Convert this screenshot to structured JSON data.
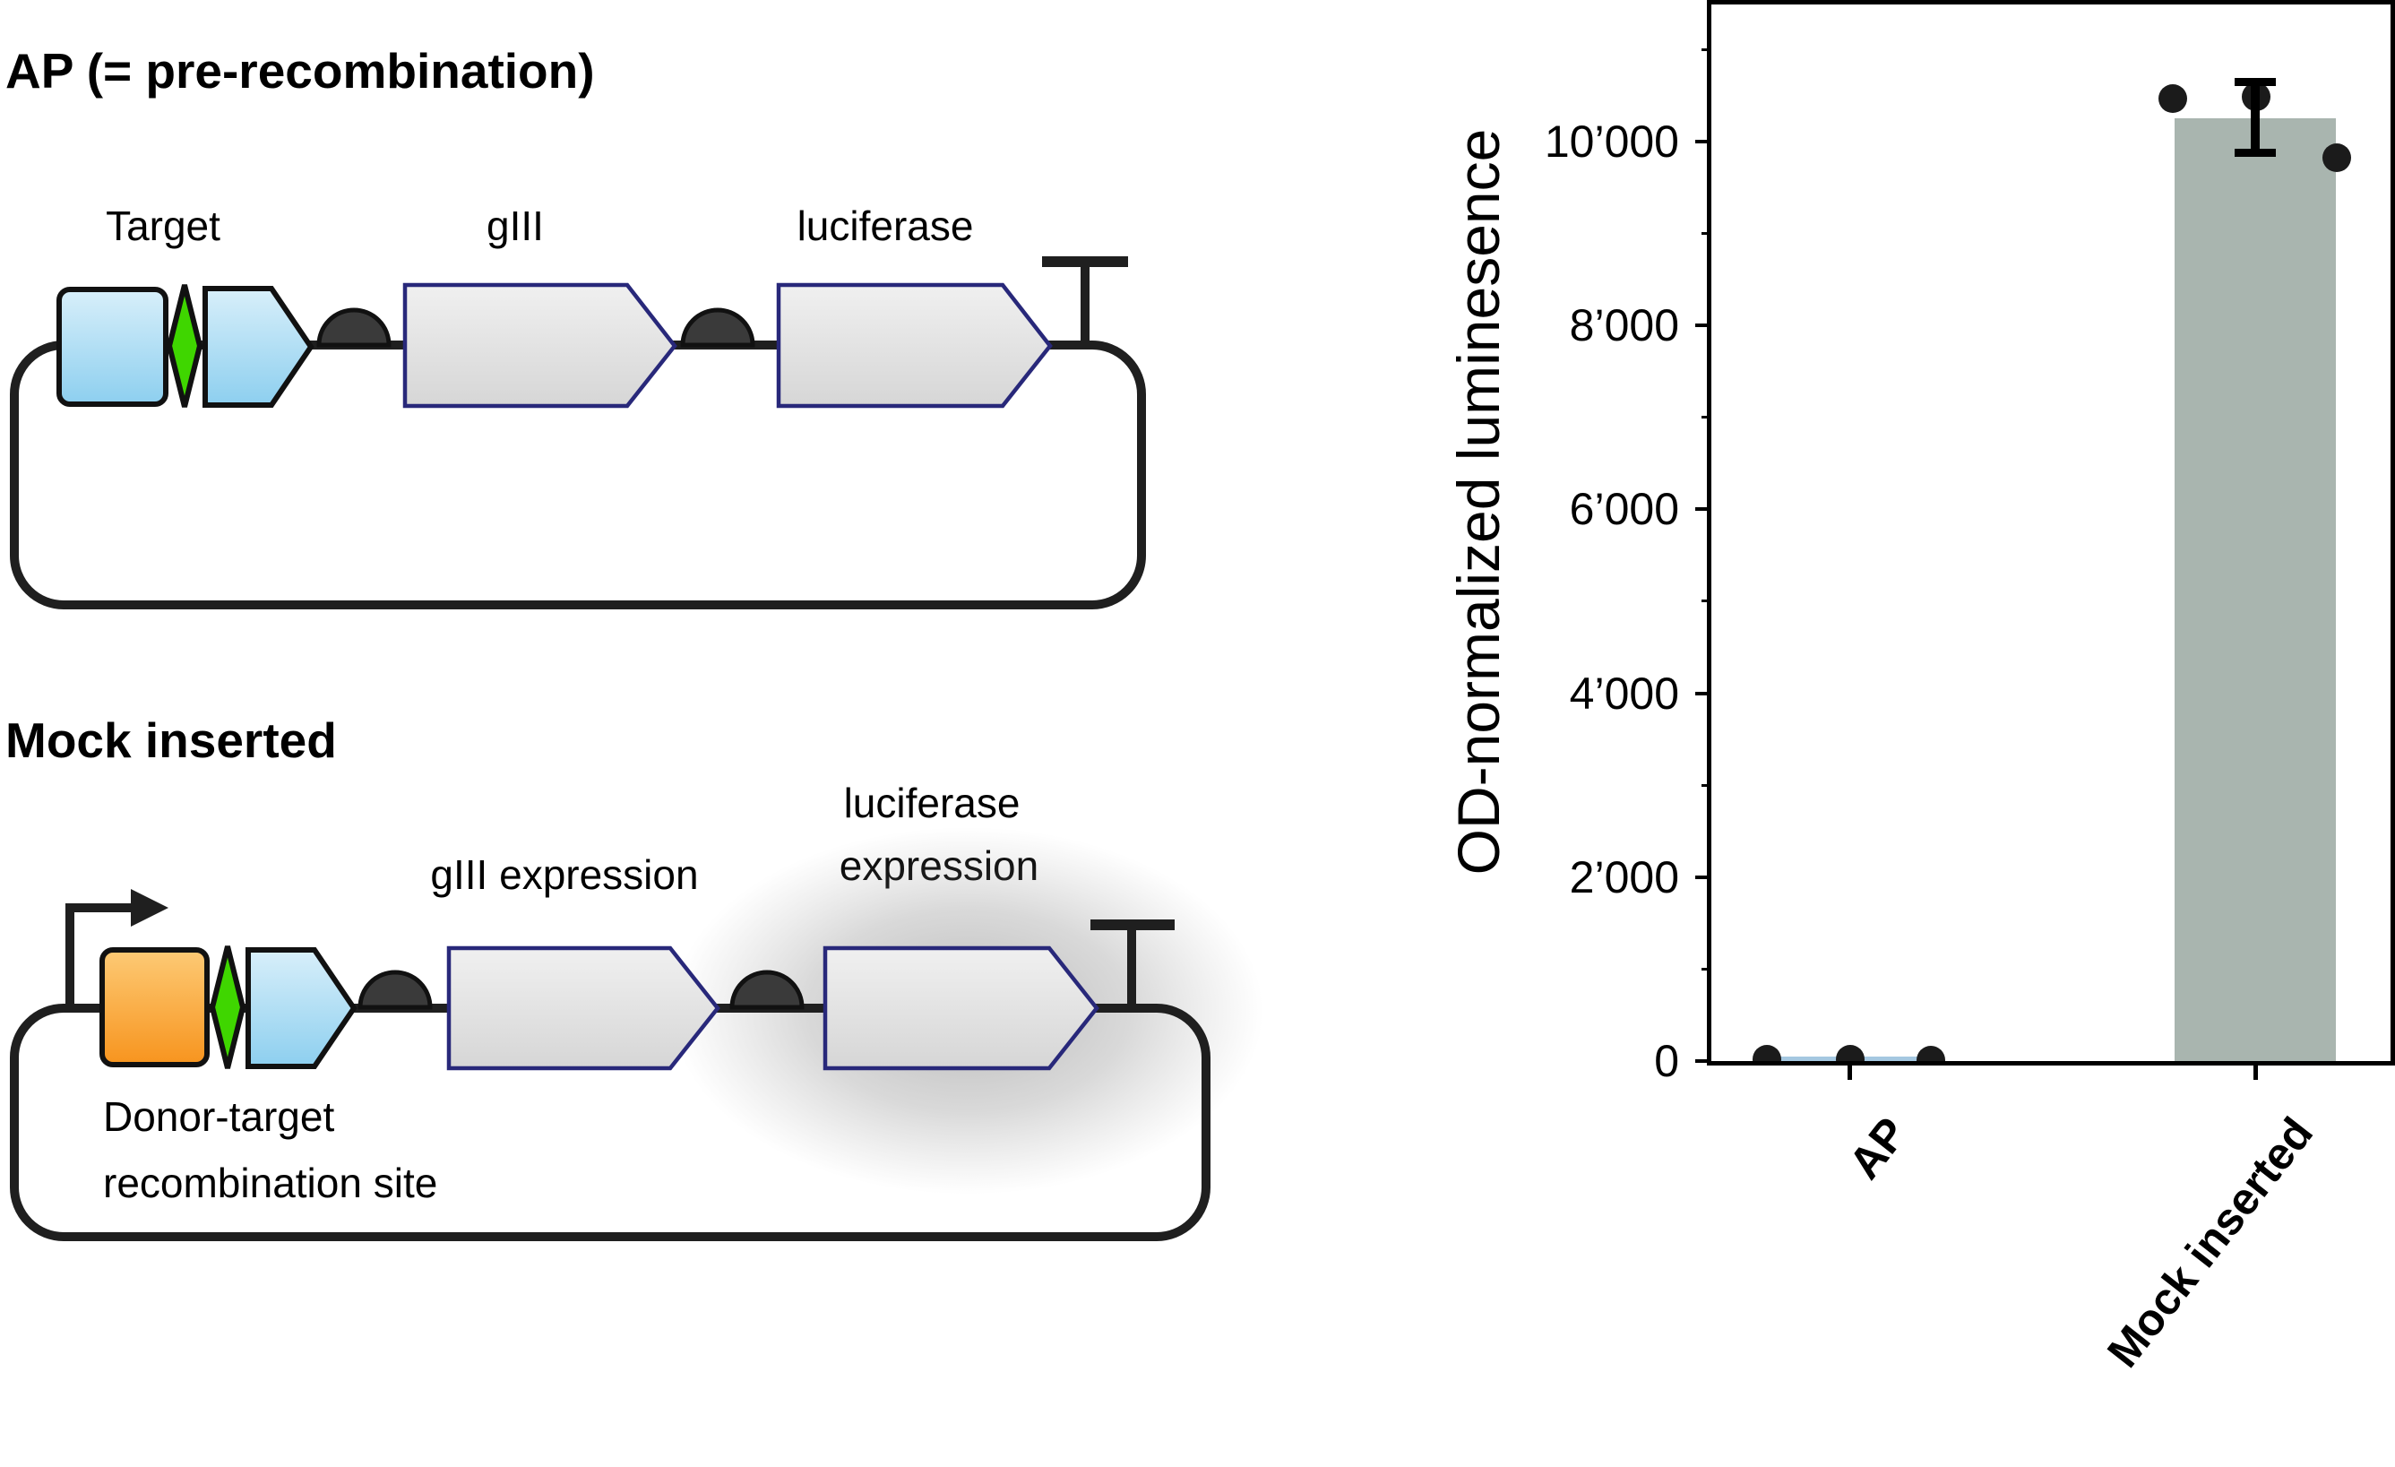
{
  "figure": {
    "description_left": "plasmid construct diagrams",
    "description_right": "bar chart of OD-normalized luminescence"
  },
  "diagram": {
    "construct1": {
      "title": "AP (= pre-recombination)",
      "labels": {
        "target": "Target",
        "gIII": "gIII",
        "luciferase": "luciferase"
      }
    },
    "construct2": {
      "title": "Mock inserted",
      "labels": {
        "gIII": "gIII expression",
        "luciferase_line1": "luciferase",
        "luciferase_line2": "expression",
        "site_line1": "Donor-target",
        "site_line2": "recombination site"
      }
    }
  },
  "colors": {
    "blue_light": "#d8effa",
    "blue_dark": "#8dcfef",
    "green": "#3fd600",
    "orange_light": "#fdca75",
    "orange_dark": "#f7941e",
    "gene_gray_light": "#f0f0f0",
    "gene_gray_dark": "#d6d6d6",
    "gene_stroke": "#28287a",
    "outline": "#111111",
    "backbone": "#1f1f1f",
    "rbs_fill": "#3a3a3a",
    "bar_mock": "#a9b5af",
    "bar_ap": "#a5c8e1",
    "point": "#1b1b1b"
  },
  "chart_data": {
    "type": "bar",
    "title": "",
    "xlabel": "",
    "ylabel": "OD-normalized luminesence",
    "categories": [
      "AP",
      "Mock inserted"
    ],
    "values": [
      50,
      10250
    ],
    "points": [
      [
        15,
        20,
        10
      ],
      [
        10470,
        10490,
        9820
      ]
    ],
    "error_bars": [
      null,
      {
        "upper": 10650,
        "lower": 9880
      }
    ],
    "bar_colors": [
      "#a5c8e1",
      "#a9b5af"
    ],
    "point_color": "#1b1b1b",
    "ylim": [
      0,
      11500
    ],
    "yticks": [
      {
        "value": 0,
        "label": "0"
      },
      {
        "value": 2000,
        "label": "2’000"
      },
      {
        "value": 4000,
        "label": "4’000"
      },
      {
        "value": 6000,
        "label": "6’000"
      },
      {
        "value": 8000,
        "label": "8’000"
      },
      {
        "value": 10000,
        "label": "10’000"
      }
    ],
    "minor_tick_step": 1000,
    "grid": false,
    "legend": null,
    "frame": true
  }
}
